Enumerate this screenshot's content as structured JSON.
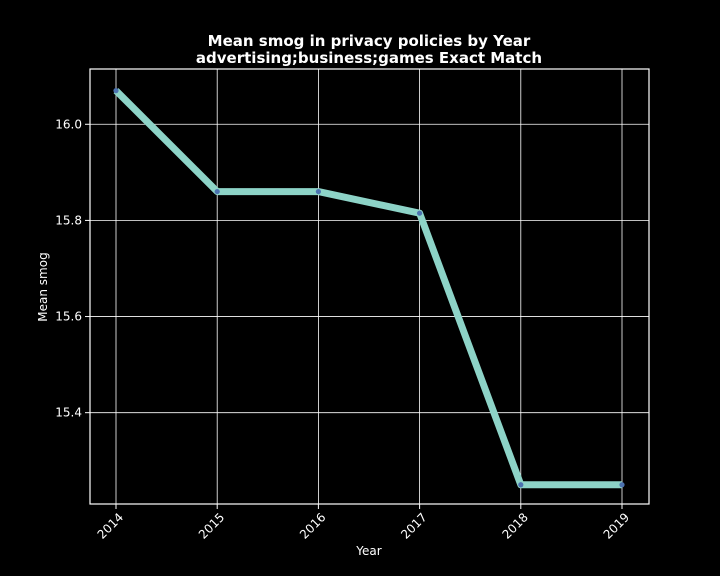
{
  "chart_data": {
    "type": "line",
    "title_line1": "Mean smog in privacy policies by Year",
    "title_line2": "advertising;business;games Exact Match",
    "xlabel": "Year",
    "ylabel": "Mean smog",
    "categories": [
      "2014",
      "2015",
      "2016",
      "2017",
      "2018",
      "2019"
    ],
    "series": [
      {
        "values": [
          16.07,
          15.86,
          15.86,
          15.815,
          15.25,
          15.25
        ]
      }
    ],
    "ylim": [
      15.21,
      16.115
    ],
    "yticks": [
      15.4,
      15.6,
      15.8,
      16.0
    ],
    "ytick_labels": [
      "15.4",
      "15.6",
      "15.8",
      "16.0"
    ],
    "grid": true,
    "colors": {
      "background": "#000000",
      "line": "#8dd3c7",
      "marker": "#4c72b0",
      "grid": "#ffffff",
      "text": "#ffffff"
    }
  }
}
